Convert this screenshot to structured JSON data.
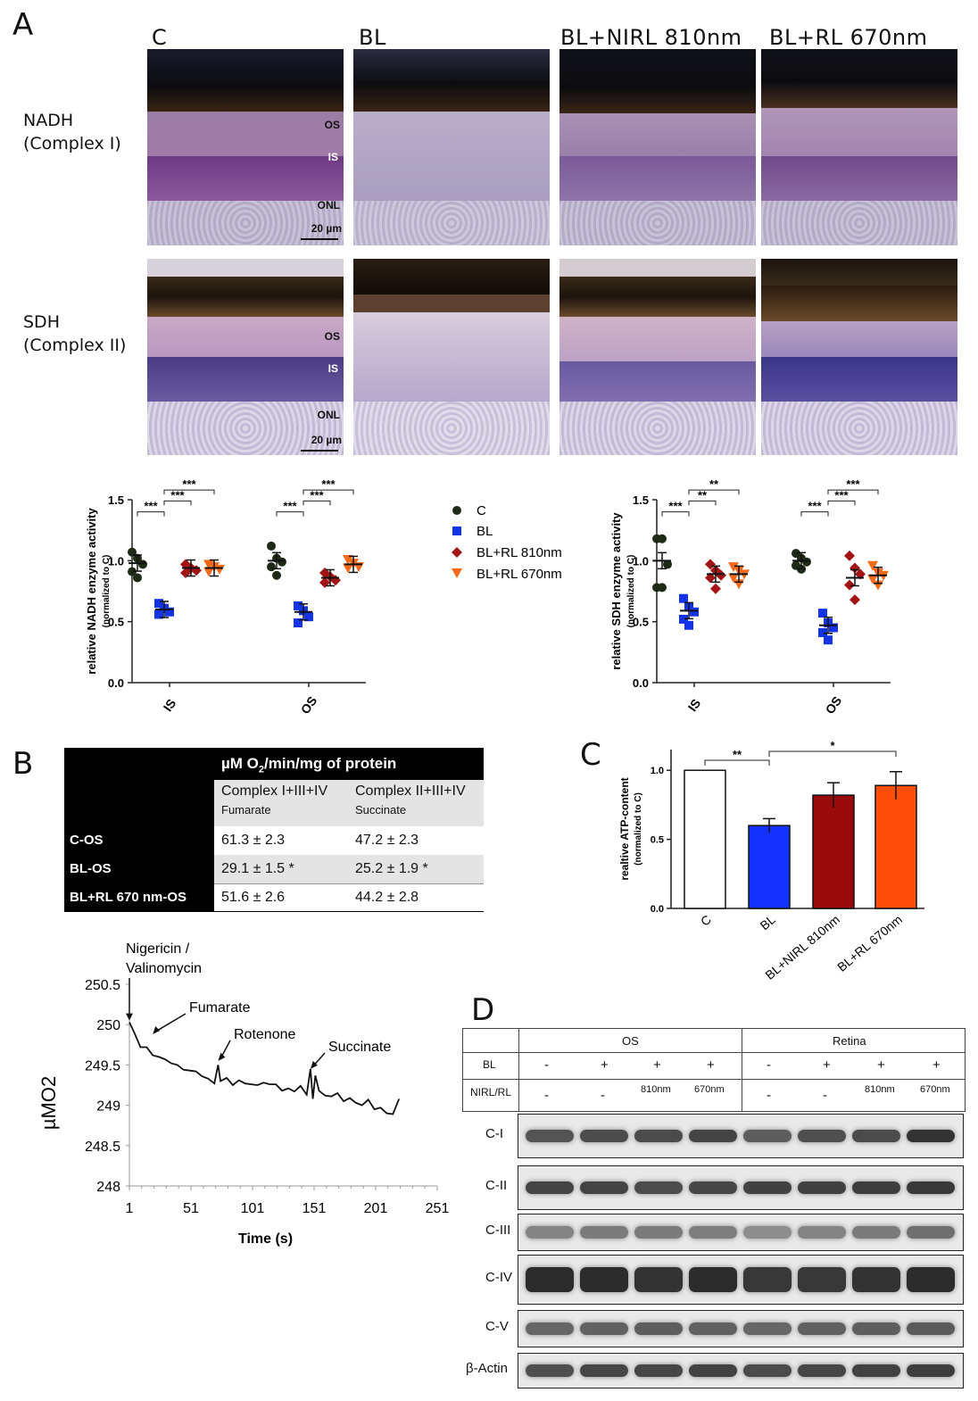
{
  "panel_a": {
    "letter": "A",
    "columns": [
      "C",
      "BL",
      "BL+NIRL 810nm",
      "BL+RL 670nm"
    ],
    "rows": [
      {
        "label_line1": "NADH",
        "label_line2": "(Complex I)"
      },
      {
        "label_line1": "SDH",
        "label_line2": "(Complex II)"
      }
    ],
    "micro_labels": {
      "os": "OS",
      "is": "IS",
      "onl": "ONL",
      "scale": "20 µm"
    }
  },
  "chart_data": [
    {
      "type": "scatter",
      "title": "",
      "ylabel": "relative NADH enzyme activity",
      "ylabel_sub": "(normalized to C)",
      "categories": [
        "IS",
        "OS"
      ],
      "ylim": [
        0,
        1.5
      ],
      "yticks": [
        "0.0",
        "0.5",
        "1.0",
        "1.5"
      ],
      "series": [
        {
          "name": "C",
          "color": "#1e2a16",
          "marker": "circle",
          "means": [
            0.98,
            1.0
          ],
          "points": [
            [
              1.07,
              1.02,
              0.97,
              0.91,
              0.86
            ],
            [
              1.12,
              1.02,
              0.99,
              0.95,
              0.88
            ]
          ]
        },
        {
          "name": "BL",
          "color": "#1533e6",
          "marker": "square",
          "means": [
            0.6,
            0.58
          ],
          "points": [
            [
              0.65,
              0.61,
              0.58,
              0.56
            ],
            [
              0.63,
              0.59,
              0.54,
              0.49
            ]
          ]
        },
        {
          "name": "BL+RL 810nm",
          "color": "#a31515",
          "marker": "diamond",
          "means": [
            0.94,
            0.86
          ],
          "points": [
            [
              0.97,
              0.94,
              0.92,
              0.9
            ],
            [
              0.9,
              0.87,
              0.84,
              0.82
            ]
          ]
        },
        {
          "name": "BL+RL 670nm",
          "color": "#f46a1a",
          "marker": "triangle",
          "means": [
            0.94,
            0.97
          ],
          "points": [
            [
              0.97,
              0.95,
              0.93,
              0.91
            ],
            [
              1.01,
              0.98,
              0.95,
              0.94
            ]
          ]
        }
      ],
      "significance": [
        {
          "group": "IS",
          "from": 0,
          "to": 1,
          "label": "***",
          "level": 1.4
        },
        {
          "group": "IS",
          "from": 1,
          "to": 2,
          "label": "***",
          "level": 1.49
        },
        {
          "group": "IS",
          "from": 1,
          "to": 3,
          "label": "***",
          "level": 1.58
        },
        {
          "group": "OS",
          "from": 0,
          "to": 1,
          "label": "***",
          "level": 1.4
        },
        {
          "group": "OS",
          "from": 1,
          "to": 2,
          "label": "***",
          "level": 1.49
        },
        {
          "group": "OS",
          "from": 1,
          "to": 3,
          "label": "***",
          "level": 1.58
        }
      ]
    },
    {
      "type": "scatter",
      "title": "",
      "ylabel": "relative SDH enzyme activity",
      "ylabel_sub": "(normalized to C)",
      "categories": [
        "IS",
        "OS"
      ],
      "ylim": [
        0,
        1.5
      ],
      "yticks": [
        "0.0",
        "0.5",
        "1.0",
        "1.5"
      ],
      "series": [
        {
          "name": "C",
          "color": "#1e2a16",
          "marker": "circle",
          "means": [
            1.0,
            1.0
          ],
          "points": [
            [
              1.18,
              1.18,
              0.97,
              0.78,
              0.78
            ],
            [
              1.06,
              1.02,
              0.99,
              0.96,
              0.93
            ]
          ]
        },
        {
          "name": "BL",
          "color": "#1533e6",
          "marker": "square",
          "means": [
            0.59,
            0.47
          ],
          "points": [
            [
              0.69,
              0.62,
              0.58,
              0.52,
              0.47
            ],
            [
              0.57,
              0.49,
              0.45,
              0.41,
              0.35
            ]
          ]
        },
        {
          "name": "BL+RL 810nm",
          "color": "#a31515",
          "marker": "diamond",
          "means": [
            0.89,
            0.86
          ],
          "points": [
            [
              0.97,
              0.92,
              0.88,
              0.86,
              0.77
            ],
            [
              1.04,
              0.94,
              0.89,
              0.8,
              0.68
            ]
          ]
        },
        {
          "name": "BL+RL 670nm",
          "color": "#f46a1a",
          "marker": "triangle",
          "means": [
            0.89,
            0.88
          ],
          "points": [
            [
              0.95,
              0.92,
              0.89,
              0.86,
              0.81
            ],
            [
              0.96,
              0.9,
              0.88,
              0.85,
              0.8
            ]
          ]
        }
      ],
      "significance": [
        {
          "group": "IS",
          "from": 0,
          "to": 1,
          "label": "***",
          "level": 1.4
        },
        {
          "group": "IS",
          "from": 1,
          "to": 2,
          "label": "**",
          "level": 1.49
        },
        {
          "group": "IS",
          "from": 1,
          "to": 3,
          "label": "**",
          "level": 1.58
        },
        {
          "group": "OS",
          "from": 0,
          "to": 1,
          "label": "***",
          "level": 1.4
        },
        {
          "group": "OS",
          "from": 1,
          "to": 2,
          "label": "***",
          "level": 1.49
        },
        {
          "group": "OS",
          "from": 1,
          "to": 3,
          "label": "***",
          "level": 1.58
        }
      ]
    },
    {
      "type": "bar",
      "title": "",
      "ylabel": "realtive ATP-content",
      "ylabel_sub": "(normalized to C)",
      "categories": [
        "C",
        "BL",
        "BL+NIRL 810nm",
        "BL+RL 670nm"
      ],
      "values": [
        1.0,
        0.6,
        0.82,
        0.89
      ],
      "errors": [
        0.0,
        0.05,
        0.09,
        0.1
      ],
      "colors": [
        "#ffffff",
        "#1533ff",
        "#990a0a",
        "#ff4d0a"
      ],
      "ylim": [
        0,
        1.15
      ],
      "yticks": [
        "0.0",
        "0.5",
        "1.0"
      ],
      "significance": [
        {
          "from": 0,
          "to": 1,
          "label": "**"
        },
        {
          "from": 1,
          "to": 3,
          "label": "*"
        }
      ]
    },
    {
      "type": "line",
      "title": "",
      "xlabel": "Time (s)",
      "ylabel": "µMO2",
      "xlim": [
        1,
        251
      ],
      "ylim": [
        248,
        250.5
      ],
      "xticks": [
        "1",
        "51",
        "101",
        "151",
        "201",
        "251"
      ],
      "yticks": [
        "248",
        "248.5",
        "249",
        "249.5",
        "250",
        "250.5"
      ],
      "x": [
        1,
        5,
        10,
        15,
        20,
        25,
        30,
        35,
        40,
        45,
        50,
        55,
        60,
        65,
        70,
        73,
        75,
        80,
        85,
        90,
        95,
        100,
        105,
        110,
        115,
        120,
        125,
        130,
        135,
        140,
        145,
        148,
        150,
        152,
        155,
        160,
        165,
        170,
        175,
        180,
        185,
        190,
        195,
        200,
        205,
        210,
        215,
        220
      ],
      "y": [
        250.03,
        249.9,
        249.72,
        249.72,
        249.62,
        249.6,
        249.57,
        249.52,
        249.5,
        249.44,
        249.43,
        249.42,
        249.36,
        249.33,
        249.27,
        249.5,
        249.3,
        249.34,
        249.25,
        249.31,
        249.27,
        249.26,
        249.25,
        249.28,
        249.26,
        249.26,
        249.18,
        249.21,
        249.17,
        249.24,
        249.13,
        249.45,
        249.08,
        249.37,
        249.18,
        249.12,
        249.11,
        249.15,
        249.05,
        249.09,
        249.03,
        249.0,
        249.07,
        248.95,
        248.97,
        248.9,
        248.89,
        249.08
      ],
      "annotations": [
        {
          "text_line1": "Nigericin /",
          "text_line2": "Valinomycin",
          "x": 1,
          "y": 250.05
        },
        {
          "text_line1": "Fumarate",
          "text_line2": "",
          "x": 20,
          "y": 249.88
        },
        {
          "text_line1": "Rotenone",
          "text_line2": "",
          "x": 73,
          "y": 249.55
        },
        {
          "text_line1": "Succinate",
          "text_line2": "",
          "x": 148,
          "y": 249.45
        }
      ]
    }
  ],
  "legend": [
    "C",
    "BL",
    "BL+RL 810nm",
    "BL+RL 670nm"
  ],
  "panel_b": {
    "letter": "B",
    "header": "µM O",
    "header_sub": "2",
    "header_rest": "/min/mg of protein",
    "col1": "Complex I+III+IV",
    "col1_sub": "Fumarate",
    "col2": "Complex II+III+IV",
    "col2_sub": "Succinate",
    "rows": [
      {
        "label": "C-OS",
        "v1": "61.3 ± 2.3",
        "v2": "47.2 ± 2.3"
      },
      {
        "label": "BL-OS",
        "v1": "29.1 ± 1.5 *",
        "v2": "25.2 ± 1.9 *"
      },
      {
        "label": "BL+RL 670 nm-OS",
        "v1": "51.6 ± 2.6",
        "v2": "44.2 ± 2.8"
      }
    ]
  },
  "panel_c": {
    "letter": "C"
  },
  "panel_d": {
    "letter": "D",
    "groups": [
      "OS",
      "Retina"
    ],
    "bl_label": "BL",
    "nirl_label": "NIRL/RL",
    "bl_values": [
      "-",
      "+",
      "+",
      "+",
      "-",
      "+",
      "+",
      "+"
    ],
    "nirl_values": [
      "-",
      "-",
      "810nm",
      "670nm",
      "-",
      "-",
      "810nm",
      "670nm"
    ],
    "blots": [
      {
        "label": "C-I",
        "intensity": [
          0.78,
          0.82,
          0.82,
          0.85,
          0.74,
          0.8,
          0.82,
          0.92
        ]
      },
      {
        "label": "C-II",
        "intensity": [
          0.85,
          0.85,
          0.82,
          0.84,
          0.86,
          0.86,
          0.88,
          0.9
        ]
      },
      {
        "label": "C-III",
        "intensity": [
          0.55,
          0.6,
          0.6,
          0.58,
          0.5,
          0.55,
          0.6,
          0.65
        ]
      },
      {
        "label": "C-IV",
        "intensity": [
          0.95,
          0.95,
          0.92,
          0.95,
          0.9,
          0.9,
          0.92,
          0.95
        ]
      },
      {
        "label": "C-V",
        "intensity": [
          0.7,
          0.72,
          0.74,
          0.72,
          0.7,
          0.72,
          0.74,
          0.75
        ]
      },
      {
        "label": "β-Actin",
        "intensity": [
          0.8,
          0.84,
          0.84,
          0.86,
          0.82,
          0.84,
          0.86,
          0.88
        ]
      }
    ]
  }
}
